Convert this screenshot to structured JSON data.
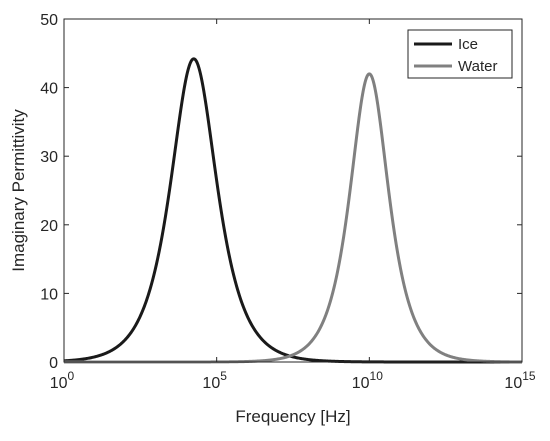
{
  "chart_data": {
    "type": "line",
    "title": "",
    "xlabel": "Frequency [Hz]",
    "ylabel": "Imaginary Permittivity",
    "xscale": "log",
    "xlim_exponent": [
      0,
      15
    ],
    "ylim": [
      0,
      50
    ],
    "x_ticks": [
      {
        "base": "10",
        "exp": "0",
        "value": 1
      },
      {
        "base": "10",
        "exp": "5",
        "value": 100000
      },
      {
        "base": "10",
        "exp": "10",
        "value": 10000000000
      },
      {
        "base": "10",
        "exp": "15",
        "value": 1000000000000000
      }
    ],
    "y_ticks": [
      "0",
      "10",
      "20",
      "30",
      "40",
      "50"
    ],
    "grid": false,
    "legend": {
      "placement": "top-right"
    },
    "series": [
      {
        "name": "Ice",
        "color": "#1a1a1a",
        "peak": {
          "log10_frequency": 4.25,
          "value": 44.2
        },
        "relaxation_width_decades": 0.68
      },
      {
        "name": "Water",
        "color": "#808080",
        "peak": {
          "log10_frequency": 10.0,
          "value": 42.0
        },
        "relaxation_width_decades": 0.57
      }
    ]
  }
}
